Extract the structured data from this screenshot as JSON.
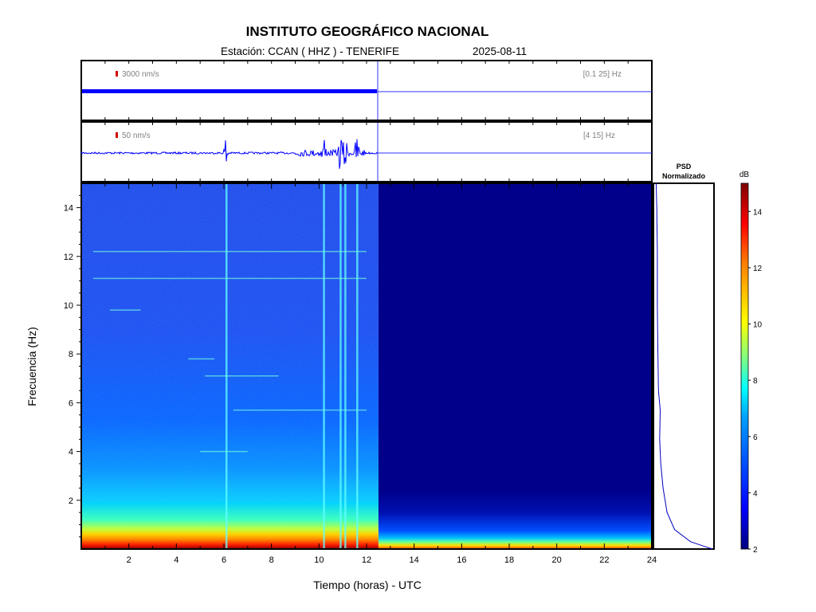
{
  "header": {
    "title": "INSTITUTO GEOGRÁFICO NACIONAL",
    "station_label": "Estación:  CCAN ( HHZ ) - TENERIFE",
    "date": "2025-08-11"
  },
  "traces": [
    {
      "scale_label": "3000 nm/s",
      "band_label": "[0.1 25] Hz"
    },
    {
      "scale_label": "50 nm/s",
      "band_label": "[4 15] Hz"
    }
  ],
  "psd": {
    "title_line1": "PSD",
    "title_line2": "Normalizado"
  },
  "colorbar": {
    "unit": "dB",
    "ticks": [
      "2",
      "4",
      "6",
      "8",
      "10",
      "12",
      "14"
    ],
    "range": [
      2,
      15
    ],
    "colors": [
      "#00007f",
      "#0000ff",
      "#007fff",
      "#00ffff",
      "#7fff7f",
      "#ffff00",
      "#ff7f00",
      "#ff0000",
      "#7f0000"
    ]
  },
  "chart_data": {
    "type": "heatmap",
    "title": "INSTITUTO GEOGRÁFICO NACIONAL",
    "subtitle": "Estación:  CCAN ( HHZ ) - TENERIFE",
    "xlabel": "Tiempo (horas) - UTC",
    "ylabel": "Frecuencia  (Hz)",
    "xlim": [
      0,
      24
    ],
    "ylim": [
      0,
      15
    ],
    "x_ticks": [
      "2",
      "4",
      "6",
      "8",
      "10",
      "12",
      "14",
      "16",
      "18",
      "20",
      "22",
      "24"
    ],
    "y_ticks": [
      "2",
      "4",
      "6",
      "8",
      "10",
      "12",
      "14"
    ],
    "data_end_hour": 12.5,
    "event_lines_hours": [
      6.1,
      10.2,
      10.9,
      11.1,
      11.6
    ],
    "horizontal_lines_hz": [
      {
        "f": 9.8,
        "from": 1.2,
        "to": 2.5
      },
      {
        "f": 7.8,
        "from": 4.5,
        "to": 5.6
      },
      {
        "f": 7.1,
        "from": 5.2,
        "to": 8.3
      },
      {
        "f": 5.7,
        "from": 6.4,
        "to": 12.0
      },
      {
        "f": 4.0,
        "from": 5.0,
        "to": 7.0
      },
      {
        "f": 11.1,
        "from": 0.5,
        "to": 12.0
      },
      {
        "f": 12.2,
        "from": 0.5,
        "to": 12.0
      }
    ],
    "psd_profile": [
      {
        "f": 0.0,
        "v": 1.0
      },
      {
        "f": 0.3,
        "v": 0.62
      },
      {
        "f": 0.8,
        "v": 0.34
      },
      {
        "f": 1.5,
        "v": 0.21
      },
      {
        "f": 2.5,
        "v": 0.14
      },
      {
        "f": 3.5,
        "v": 0.1
      },
      {
        "f": 4.5,
        "v": 0.08
      },
      {
        "f": 5.7,
        "v": 0.09
      },
      {
        "f": 6.5,
        "v": 0.06
      },
      {
        "f": 8.0,
        "v": 0.05
      },
      {
        "f": 10.0,
        "v": 0.04
      },
      {
        "f": 12.2,
        "v": 0.04
      },
      {
        "f": 14.0,
        "v": 0.03
      },
      {
        "f": 15.0,
        "v": 0.02
      }
    ]
  }
}
